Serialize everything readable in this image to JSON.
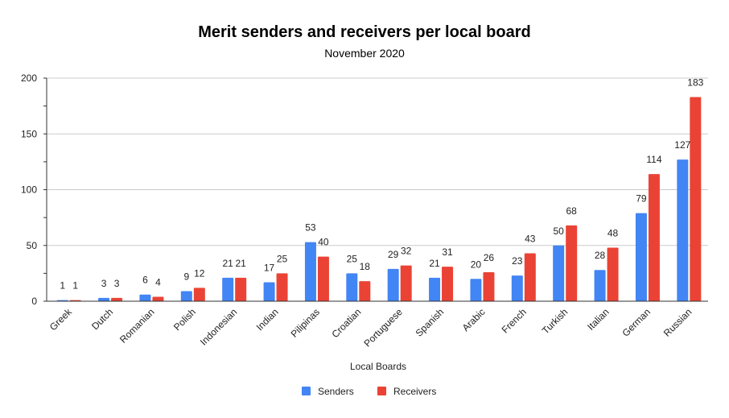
{
  "chart_data": {
    "type": "bar",
    "title": "Merit senders and receivers  per local board",
    "subtitle": "November 2020",
    "xlabel": "Local Boards",
    "ylabel": "",
    "ylim": [
      0,
      200
    ],
    "yticks": [
      0,
      50,
      100,
      150,
      200
    ],
    "grid": true,
    "legend_position": "bottom",
    "categories": [
      "Greek",
      "Dutch",
      "Romanian",
      "Polish",
      "Indonesian",
      "Indian",
      "Pilipinas",
      "Croatian",
      "Portuguese",
      "Spanish",
      "Arabic",
      "French",
      "Turkish",
      "Italian",
      "German",
      "Russian"
    ],
    "series": [
      {
        "name": "Senders",
        "color": "#4285f4",
        "values": [
          1,
          3,
          6,
          9,
          21,
          17,
          53,
          25,
          29,
          21,
          20,
          23,
          50,
          28,
          79,
          127
        ]
      },
      {
        "name": "Receivers",
        "color": "#ea4335",
        "values": [
          1,
          3,
          4,
          12,
          21,
          25,
          40,
          18,
          32,
          31,
          26,
          43,
          68,
          48,
          114,
          183
        ]
      }
    ]
  }
}
